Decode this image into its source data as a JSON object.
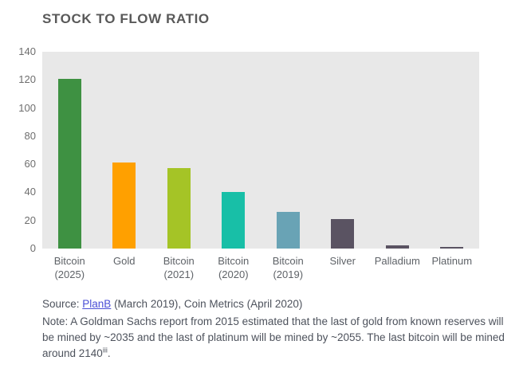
{
  "chart_data": {
    "type": "bar",
    "title": "STOCK TO FLOW RATIO",
    "categories": [
      "Bitcoin (2025)",
      "Gold",
      "Bitcoin (2021)",
      "Bitcoin (2020)",
      "Bitcoin (2019)",
      "Silver",
      "Palladium",
      "Platinum"
    ],
    "values": [
      121,
      61,
      57,
      40,
      26,
      21,
      2,
      1
    ],
    "bar_colors": [
      "#3e9142",
      "#ffa000",
      "#a5c426",
      "#18bfa7",
      "#69a3b5",
      "#5a5362",
      "#5a5362",
      "#5a5362"
    ],
    "xlabel": "",
    "ylabel": "",
    "ylim": [
      0,
      140
    ],
    "yticks": [
      0,
      20,
      40,
      60,
      80,
      100,
      120,
      140
    ],
    "grid": false,
    "legend": false,
    "plot_background": "#e8e8e8"
  },
  "footer": {
    "source_prefix": "Source: ",
    "source_link": "PlanB",
    "source_suffix": " (March 2019), Coin Metrics (April 2020)",
    "note_prefix": "Note: A Goldman Sachs report from 2015 estimated that the last of gold from known reserves will be mined by ~2035 and the last of platinum will be mined by ~2055. The last bitcoin will be mined around 2140",
    "note_superscript": "iii",
    "note_suffix": "."
  },
  "colors": {
    "title_text": "#595959",
    "axis_text": "#6e6e6e",
    "body_text": "#4d525c",
    "link": "#4b4fd6"
  }
}
